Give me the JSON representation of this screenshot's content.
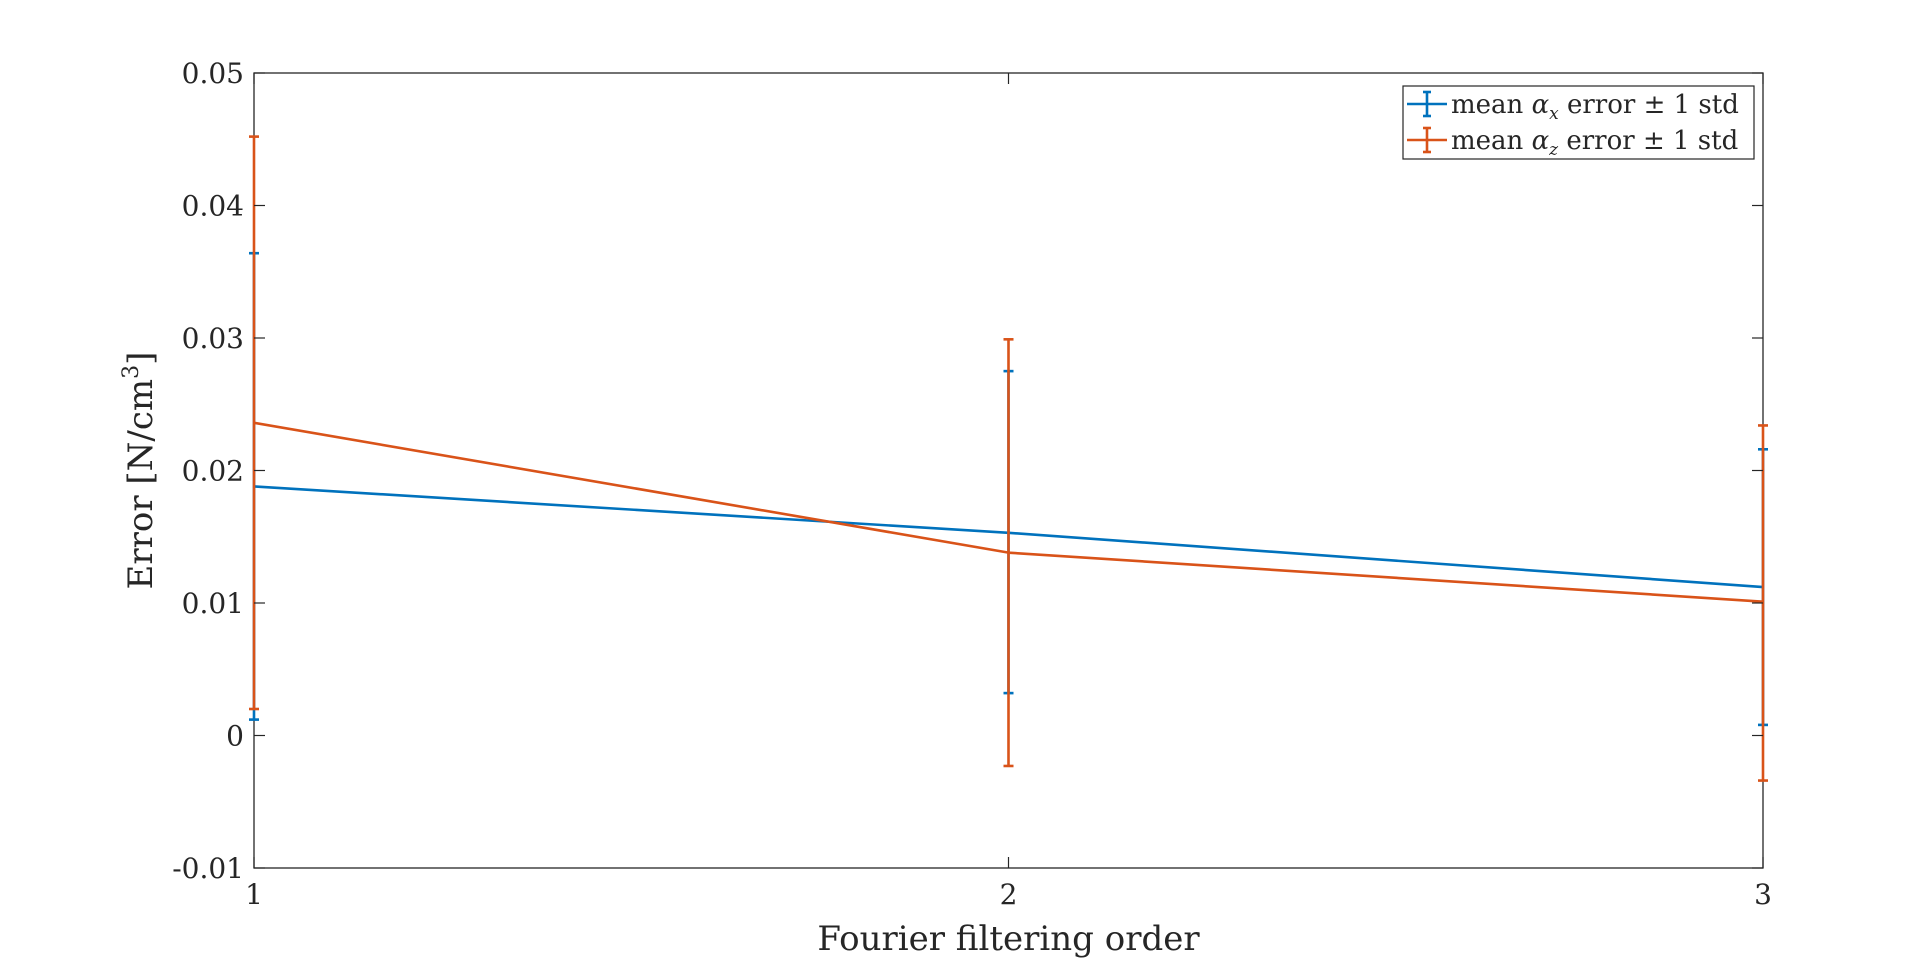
{
  "chart_data": {
    "type": "line",
    "error_bars": true,
    "xlabel": "Fourier filtering order",
    "ylabel_main": "Error [N/cm",
    "ylabel_sup": "3",
    "ylabel_close": "]",
    "xlim": [
      1,
      3
    ],
    "ylim": [
      -0.01,
      0.05
    ],
    "x": [
      1,
      2,
      3
    ],
    "xticks": [
      1,
      2,
      3
    ],
    "yticks": [
      -0.01,
      0,
      0.01,
      0.02,
      0.03,
      0.04,
      0.05
    ],
    "ytick_labels": [
      "-0.01",
      "0",
      "0.01",
      "0.02",
      "0.03",
      "0.04",
      "0.05"
    ],
    "grid": false,
    "legend_position": "top-right",
    "series": [
      {
        "legend_prefix": "mean ",
        "legend_symbol": "α",
        "legend_sub": "x",
        "legend_suffix": " error ± 1 std",
        "color": "#0072BD",
        "values": [
          0.0188,
          0.0153,
          0.0112
        ],
        "lower": [
          0.0012,
          0.0032,
          0.0008
        ],
        "upper": [
          0.0364,
          0.0275,
          0.0216
        ]
      },
      {
        "legend_prefix": "mean ",
        "legend_symbol": "α",
        "legend_sub": "z",
        "legend_suffix": " error ± 1 std",
        "color": "#D95319",
        "values": [
          0.0236,
          0.0138,
          0.0101
        ],
        "lower": [
          0.002,
          -0.0023,
          -0.0034
        ],
        "upper": [
          0.0452,
          0.0299,
          0.0234
        ]
      }
    ]
  }
}
